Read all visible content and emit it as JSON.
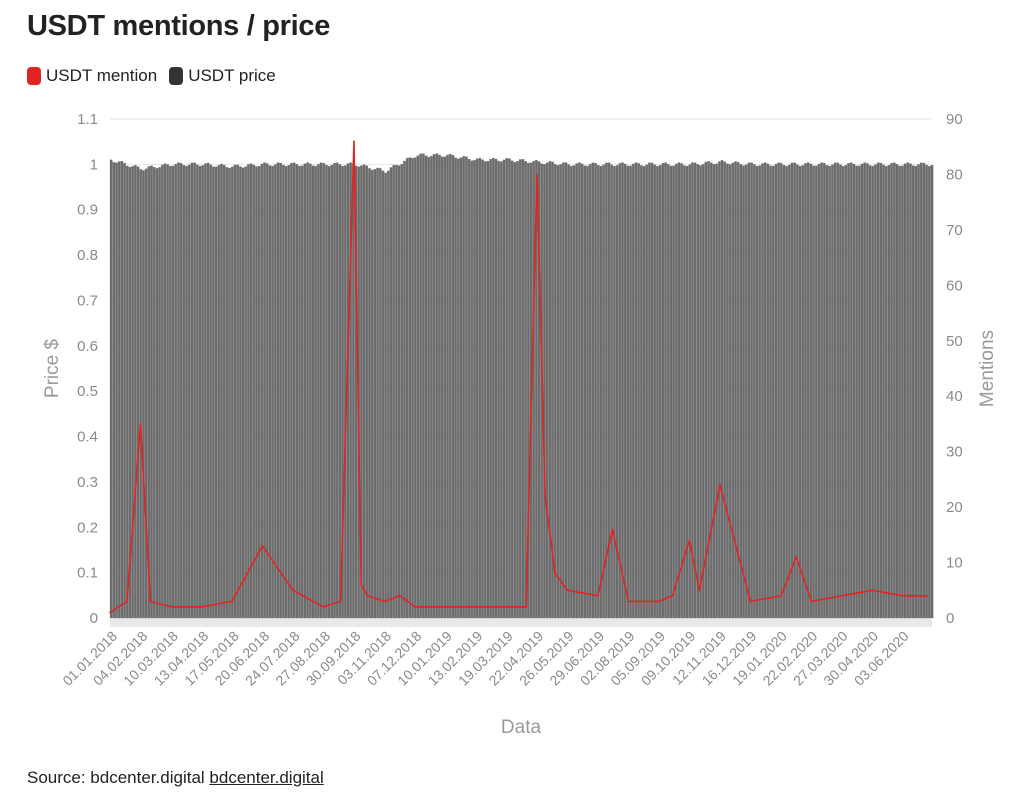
{
  "title": "USDT mentions / price",
  "legend": [
    {
      "label": "USDT mention",
      "color": "#e02424"
    },
    {
      "label": "USDT price",
      "color": "#333333"
    }
  ],
  "source": {
    "prefix": "Source: bdcenter.digital",
    "link": "bdcenter.digital"
  },
  "chart_data": {
    "type": "bar+line",
    "xlabel": "Data",
    "ylabel_left": "Price $",
    "ylabel_right": "Mentions",
    "ylim_left": [
      0,
      1.1
    ],
    "ylim_right": [
      0,
      90
    ],
    "yticks_left": [
      "0",
      "0.1",
      "0.2",
      "0.3",
      "0.4",
      "0.5",
      "0.6",
      "0.7",
      "0.8",
      "0.9",
      "1",
      "1.1"
    ],
    "yticks_right": [
      "0",
      "10",
      "20",
      "30",
      "40",
      "50",
      "60",
      "70",
      "80",
      "90"
    ],
    "x_ticks": [
      "01.01.2018",
      "04.02.2018",
      "10.03.2018",
      "13.04.2018",
      "17.05.2018",
      "20.06.2018",
      "24.07.2018",
      "27.08.2018",
      "30.09.2018",
      "03.11.2018",
      "07.12.2018",
      "10.01.2019",
      "13.02.2019",
      "19.03.2019",
      "22.04.2019",
      "26.05.2019",
      "29.06.2019",
      "02.08.2019",
      "05.09.2019",
      "09.10.2019",
      "12.11.2019",
      "16.12.2019",
      "19.01.2020",
      "22.02.2020",
      "27.03.2020",
      "30.04.2020",
      "03.06.2020"
    ],
    "series": [
      {
        "name": "USDT price",
        "type": "bar",
        "color": "#6b6b6b",
        "description": "daily price, hovering around 1.0",
        "x": [
          "01.01.2018",
          "04.02.2018",
          "10.03.2018",
          "13.04.2018",
          "17.05.2018",
          "20.06.2018",
          "24.07.2018",
          "27.08.2018",
          "30.09.2018",
          "03.11.2018",
          "07.12.2018",
          "10.01.2019",
          "13.02.2019",
          "19.03.2019",
          "22.04.2019",
          "26.05.2019",
          "29.06.2019",
          "02.08.2019",
          "05.09.2019",
          "09.10.2019",
          "12.11.2019",
          "16.12.2019",
          "19.01.2020",
          "22.02.2020",
          "27.03.2020",
          "30.04.2020",
          "03.06.2020"
        ],
        "values": [
          1.01,
          0.99,
          1.0,
          1.0,
          0.995,
          1.0,
          1.0,
          1.0,
          1.0,
          0.985,
          1.02,
          1.02,
          1.01,
          1.01,
          1.005,
          1.0,
          1.0,
          1.0,
          1.0,
          1.0,
          1.005,
          1.0,
          1.0,
          1.0,
          1.0,
          1.0,
          1.0
        ]
      },
      {
        "name": "USDT mention",
        "type": "line",
        "color": "#e02424",
        "x": [
          "01.01.2018",
          "20.01.2018",
          "04.02.2018",
          "15.02.2018",
          "10.03.2018",
          "13.04.2018",
          "17.05.2018",
          "20.06.2018",
          "24.07.2018",
          "27.08.2018",
          "15.09.2018",
          "30.09.2018",
          "08.10.2018",
          "15.10.2018",
          "03.11.2018",
          "20.11.2018",
          "07.12.2018",
          "10.01.2019",
          "13.02.2019",
          "19.03.2019",
          "10.04.2019",
          "22.04.2019",
          "01.05.2019",
          "12.05.2019",
          "26.05.2019",
          "29.06.2019",
          "15.07.2019",
          "02.08.2019",
          "05.09.2019",
          "20.09.2019",
          "09.10.2019",
          "20.10.2019",
          "12.11.2019",
          "16.12.2019",
          "19.01.2020",
          "05.02.2020",
          "22.02.2020",
          "27.03.2020",
          "30.04.2020",
          "03.06.2020",
          "30.06.2020"
        ],
        "values": [
          1,
          3,
          35,
          3,
          2,
          2,
          3,
          13,
          5,
          2,
          3,
          86,
          6,
          4,
          3,
          4,
          2,
          2,
          2,
          2,
          2,
          80,
          22,
          8,
          5,
          4,
          16,
          3,
          3,
          4,
          14,
          5,
          24,
          3,
          4,
          11,
          3,
          4,
          5,
          4,
          4
        ]
      }
    ],
    "grid": true
  }
}
